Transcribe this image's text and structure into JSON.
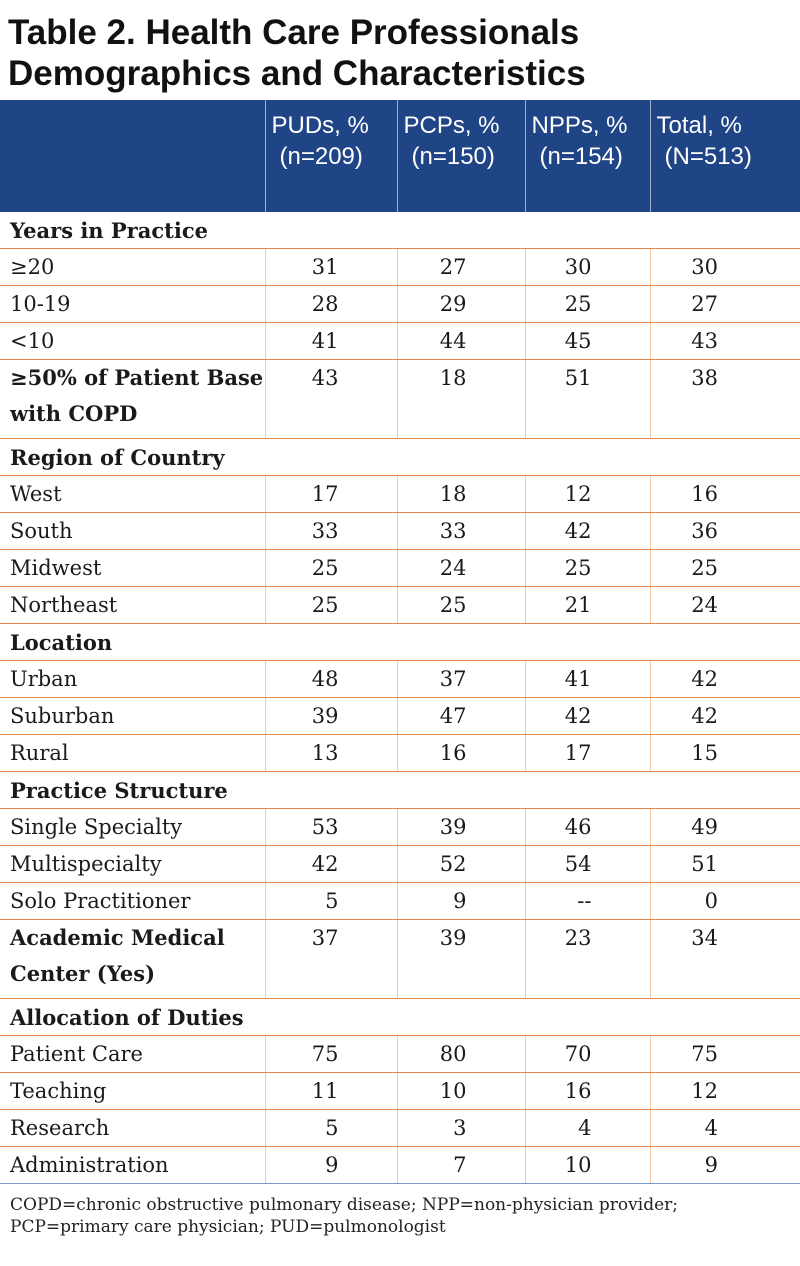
{
  "title": {
    "line1": "Table 2. Health Care Professionals",
    "line2": "Demographics and Characteristics"
  },
  "header": [
    {
      "label": "PUDs, %",
      "n": "(n=209)"
    },
    {
      "label": "PCPs, %",
      "n": "(n=150)"
    },
    {
      "label": "NPPs, %",
      "n": "(n=154)"
    },
    {
      "label": "Total, %",
      "n": "(N=513)"
    }
  ],
  "rows": [
    {
      "type": "section",
      "label": "Years in Practice"
    },
    {
      "label": "≥20",
      "values": [
        "31",
        "27",
        "30",
        "30"
      ]
    },
    {
      "label": "10-19",
      "values": [
        "28",
        "29",
        "25",
        "27"
      ]
    },
    {
      "label": "<10",
      "values": [
        "41",
        "44",
        "45",
        "43"
      ]
    },
    {
      "type": "tall",
      "label": "≥50% of Patient Base with COPD",
      "values": [
        "43",
        "18",
        "51",
        "38"
      ]
    },
    {
      "type": "section",
      "label": "Region of Country"
    },
    {
      "label": "West",
      "values": [
        "17",
        "18",
        "12",
        "16"
      ]
    },
    {
      "label": "South",
      "values": [
        "33",
        "33",
        "42",
        "36"
      ]
    },
    {
      "label": "Midwest",
      "values": [
        "25",
        "24",
        "25",
        "25"
      ]
    },
    {
      "label": "Northeast",
      "values": [
        "25",
        "25",
        "21",
        "24"
      ]
    },
    {
      "type": "section",
      "label": "Location"
    },
    {
      "label": "Urban",
      "values": [
        "48",
        "37",
        "41",
        "42"
      ]
    },
    {
      "label": "Suburban",
      "values": [
        "39",
        "47",
        "42",
        "42"
      ]
    },
    {
      "label": "Rural",
      "values": [
        "13",
        "16",
        "17",
        "15"
      ]
    },
    {
      "type": "section",
      "label": "Practice Structure"
    },
    {
      "label": "Single Specialty",
      "values": [
        "53",
        "39",
        "46",
        "49"
      ]
    },
    {
      "label": "Multispecialty",
      "values": [
        "42",
        "52",
        "54",
        "51"
      ]
    },
    {
      "label": "Solo Practitioner",
      "values": [
        "5",
        "9",
        "--",
        "0"
      ]
    },
    {
      "type": "tall",
      "label": "Academic Medical Center (Yes)",
      "values": [
        "37",
        "39",
        "23",
        "34"
      ]
    },
    {
      "type": "section",
      "label": "Allocation of Duties"
    },
    {
      "label": "Patient Care",
      "values": [
        "75",
        "80",
        "70",
        "75"
      ]
    },
    {
      "label": "Teaching",
      "values": [
        "11",
        "10",
        "16",
        "12"
      ]
    },
    {
      "label": "Research",
      "values": [
        "5",
        "3",
        "4",
        "4"
      ]
    },
    {
      "label": "Administration",
      "values": [
        "9",
        "7",
        "10",
        "9"
      ]
    }
  ],
  "footnote": "COPD=chronic obstructive pulmonary disease; NPP=non-physician provider; PCP=primary care physician; PUD=pulmonologist",
  "colors": {
    "header_bg": "#1f4586",
    "row_rule": "#e4874c"
  }
}
